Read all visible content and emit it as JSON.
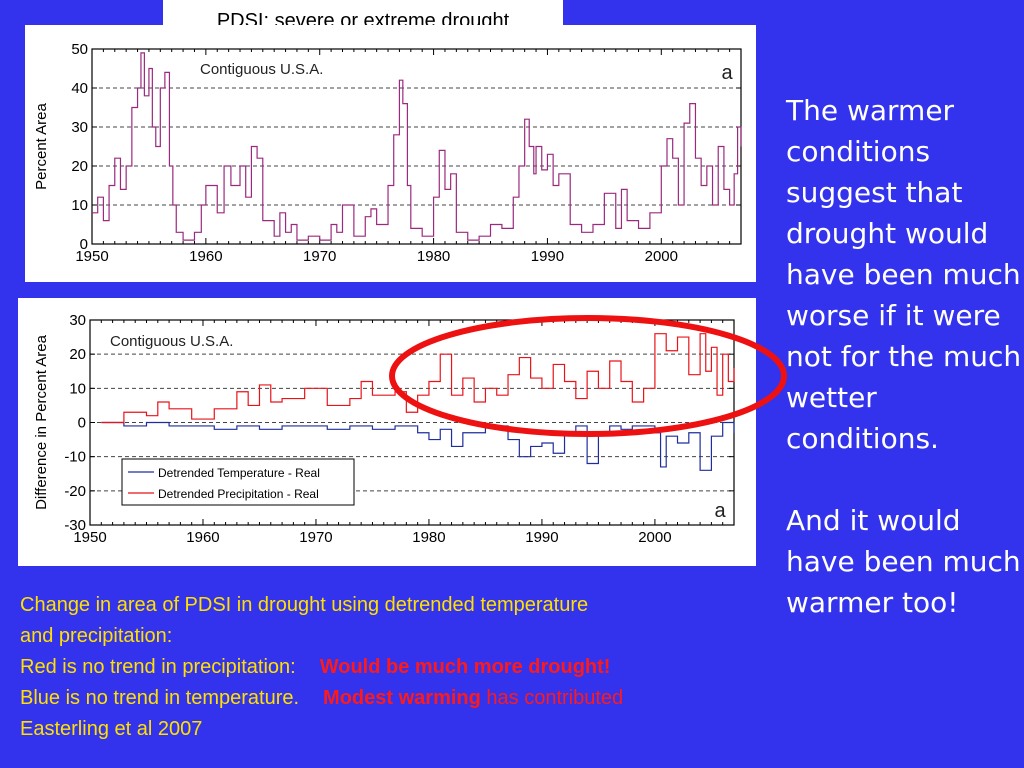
{
  "slide": {
    "title": "PDSI: severe or extreme drought",
    "side_text_1": "The warmer conditions suggest that drought would have been much worse if it were not for the much wetter conditions.",
    "side_text_2": "And it would have been much warmer too!",
    "caption_line1": "Change in area of PDSI in drought using detrended temperature",
    "caption_line2": "and precipitation:",
    "caption_line3_a": "Red is no trend in precipitation:",
    "caption_line3_b": "Would be much more drought!",
    "caption_line4_a": "Blue is no trend in temperature.",
    "caption_line4_b": "Modest warming",
    "caption_line4_c": "has contributed",
    "caption_line5": "Easterling et al 2007",
    "highlight_color": "#ee1111"
  },
  "chart_data": [
    {
      "type": "line",
      "panel_label": "a",
      "annotation": "Contiguous U.S.A.",
      "ylabel": "Percent Area",
      "xlabel": "",
      "xlim": [
        1950,
        2007
      ],
      "ylim": [
        0,
        50
      ],
      "xticks": [
        1950,
        1960,
        1970,
        1980,
        1990,
        2000
      ],
      "yticks": [
        0,
        10,
        20,
        30,
        40,
        50
      ],
      "grid": "dashed horizontal",
      "series": [
        {
          "color": "#9b2a7e",
          "x": [
            1950,
            1950.5,
            1951,
            1951.5,
            1952,
            1952.5,
            1953,
            1953.5,
            1954,
            1954.3,
            1954.6,
            1955,
            1955.3,
            1955.6,
            1956,
            1956.4,
            1956.8,
            1957.1,
            1957.4,
            1958,
            1959,
            1959.6,
            1960,
            1961,
            1961.6,
            1962.2,
            1963,
            1963.5,
            1964,
            1964.5,
            1965,
            1966,
            1966.5,
            1967,
            1967.5,
            1968,
            1969,
            1970,
            1971,
            1971.5,
            1972,
            1973,
            1974,
            1974.5,
            1975,
            1976,
            1976.5,
            1977,
            1977.3,
            1977.7,
            1978,
            1979,
            1980,
            1980.5,
            1981,
            1981.5,
            1982,
            1983,
            1984,
            1985,
            1986,
            1987,
            1987.5,
            1988,
            1988.4,
            1988.8,
            1989,
            1989.5,
            1990,
            1990.5,
            1991,
            1992,
            1993,
            1994,
            1995,
            1996,
            1996.5,
            1997,
            1998,
            1999,
            2000,
            2000.5,
            2001,
            2001.5,
            2002,
            2002.5,
            2003,
            2003.5,
            2004,
            2004.5,
            2005,
            2005.5,
            2006,
            2006.4,
            2006.7,
            2007
          ],
          "y": [
            8,
            12,
            6,
            15,
            22,
            14,
            20,
            35,
            40,
            49,
            38,
            45,
            30,
            25,
            40,
            44,
            20,
            10,
            3,
            1,
            3,
            10,
            15,
            8,
            20,
            15,
            20,
            12,
            25,
            22,
            6,
            2,
            8,
            3,
            5,
            1,
            2,
            1,
            5,
            3,
            10,
            2,
            7,
            9,
            5,
            15,
            28,
            42,
            36,
            15,
            4,
            2,
            12,
            24,
            14,
            18,
            3,
            1,
            2,
            5,
            4,
            12,
            20,
            32,
            25,
            18,
            25,
            19,
            23,
            15,
            18,
            5,
            3,
            5,
            13,
            4,
            14,
            6,
            4,
            8,
            20,
            27,
            22,
            10,
            31,
            36,
            22,
            15,
            20,
            10,
            25,
            14,
            10,
            18,
            30,
            25
          ]
        }
      ]
    },
    {
      "type": "line",
      "panel_label": "a",
      "annotation": "Contiguous U.S.A.",
      "ylabel": "Difference in Percent Area",
      "xlabel": "",
      "xlim": [
        1950,
        2007
      ],
      "ylim": [
        -30,
        30
      ],
      "xticks": [
        1950,
        1960,
        1970,
        1980,
        1990,
        2000
      ],
      "yticks": [
        -30,
        -20,
        -10,
        0,
        10,
        20,
        30
      ],
      "grid": "dashed horizontal",
      "legend": "bottom-left",
      "series": [
        {
          "name": "Detrended Temperature - Real",
          "color": "#1f2e9e",
          "x": [
            1951,
            1953,
            1955,
            1957,
            1959,
            1961,
            1963,
            1965,
            1967,
            1969,
            1971,
            1973,
            1975,
            1977,
            1979,
            1980,
            1981,
            1982,
            1983,
            1985,
            1987,
            1988,
            1989,
            1990,
            1991,
            1992,
            1993,
            1994,
            1995,
            1996,
            1997,
            1998,
            1999,
            2000,
            2000.5,
            2001,
            2002,
            2003,
            2004,
            2005,
            2006,
            2007
          ],
          "y": [
            0,
            -1,
            0,
            -1,
            -1,
            -2,
            -1,
            -2,
            -1,
            -1,
            -2,
            -1,
            -2,
            -1,
            -3,
            -5,
            -2,
            -7,
            -3,
            -1,
            -5,
            -10,
            -7,
            -6,
            -9,
            -3,
            -1,
            -12,
            -3,
            -1,
            -2,
            -1,
            -1,
            -3,
            -13,
            -4,
            -6,
            -3,
            -14,
            -4,
            0,
            -3
          ]
        },
        {
          "name": "Detrended Precipitation - Real",
          "color": "#e8141a",
          "x": [
            1951,
            1953,
            1955,
            1956,
            1957,
            1959,
            1961,
            1963,
            1964,
            1965,
            1966,
            1967,
            1969,
            1971,
            1973,
            1974,
            1975,
            1977,
            1978,
            1979,
            1980,
            1981,
            1982,
            1983,
            1984,
            1985,
            1986,
            1987,
            1988,
            1989,
            1990,
            1991,
            1992,
            1993,
            1994,
            1995,
            1996,
            1997,
            1998,
            1999,
            2000,
            2001,
            2002,
            2003,
            2004,
            2004.5,
            2005,
            2005.5,
            2006,
            2006.5,
            2007
          ],
          "y": [
            0,
            3,
            2,
            6,
            4,
            1,
            4,
            9,
            5,
            11,
            6,
            7,
            10,
            5,
            7,
            12,
            8,
            9,
            3,
            8,
            12,
            20,
            8,
            13,
            6,
            10,
            8,
            14,
            19,
            13,
            10,
            17,
            12,
            7,
            15,
            10,
            18,
            12,
            6,
            10,
            26,
            21,
            25,
            14,
            26,
            15,
            22,
            8,
            20,
            12,
            16
          ]
        }
      ]
    }
  ]
}
